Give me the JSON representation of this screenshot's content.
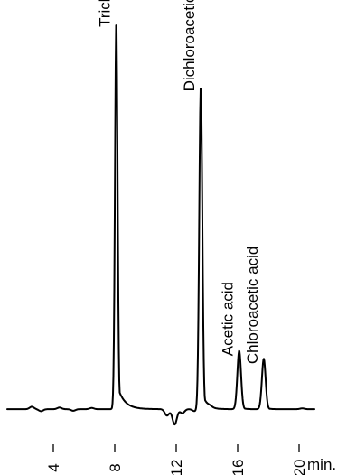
{
  "chart_data": {
    "type": "line",
    "title": "",
    "xlabel": "",
    "ylabel": "",
    "x_unit": "min.",
    "xlim": [
      1.0,
      21.0
    ],
    "ylim": [
      0,
      100
    ],
    "xticks": [
      4,
      8,
      12,
      16,
      20
    ],
    "xtick_labels": [
      "4",
      "8",
      "12",
      "16",
      "20"
    ],
    "grid": false,
    "legend": "none",
    "line_color": "#000000",
    "series": [
      {
        "baseline": 4,
        "noise": [
          [
            2.6,
            0.6
          ],
          [
            3.2,
            -0.5
          ],
          [
            4.4,
            0.4
          ],
          [
            5.3,
            -0.4
          ],
          [
            6.5,
            0.3
          ],
          [
            11.4,
            -1.6
          ],
          [
            11.9,
            -3.8
          ],
          [
            12.4,
            -1.0
          ],
          [
            13.2,
            -0.5
          ],
          [
            14.2,
            0.3
          ],
          [
            20.2,
            0.2
          ]
        ],
        "peaks": [
          {
            "label": "Trichloroacetic acid",
            "rt": 8.1,
            "height": 96,
            "sigma": 0.085,
            "tail": 0.45
          },
          {
            "label": "Dichloroacetic acid",
            "rt": 13.6,
            "height": 80,
            "sigma": 0.1,
            "tail": 0.3
          },
          {
            "label": "Acetic acid",
            "rt": 16.1,
            "height": 14.5,
            "sigma": 0.12,
            "tail": 0.18
          },
          {
            "label": "Chloroacetic acid",
            "rt": 17.7,
            "height": 12.5,
            "sigma": 0.12,
            "tail": 0.18
          }
        ]
      }
    ]
  }
}
